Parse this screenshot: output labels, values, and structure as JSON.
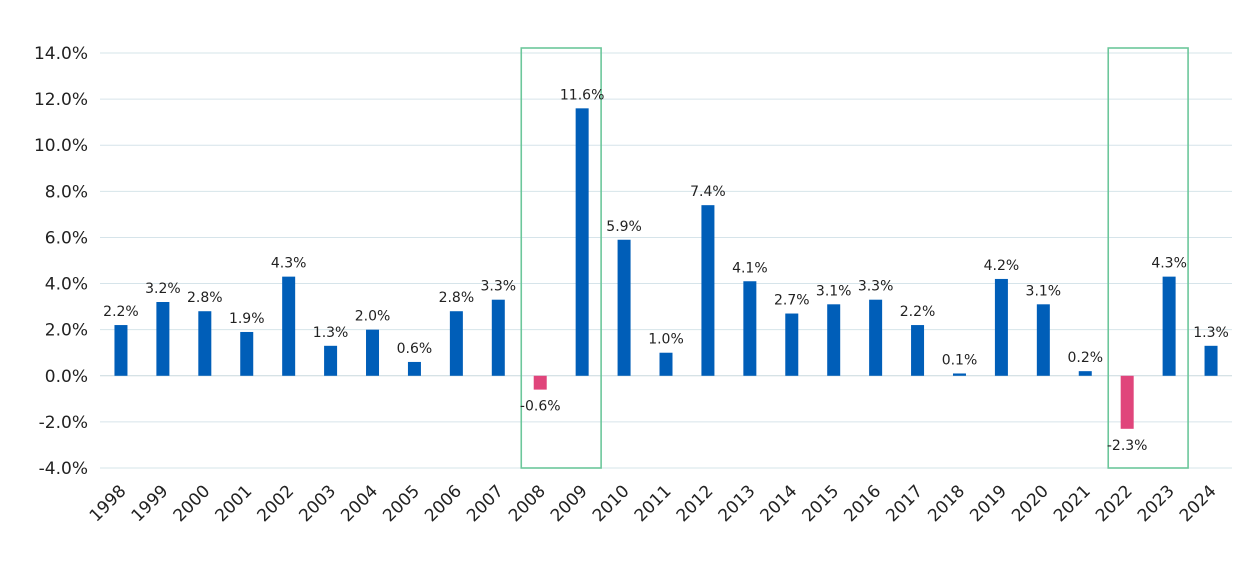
{
  "chart_data": {
    "type": "bar",
    "title": "",
    "xlabel": "",
    "ylabel": "",
    "ylim": [
      -4.0,
      14.0
    ],
    "y_ticks": [
      -4.0,
      -2.0,
      0.0,
      2.0,
      4.0,
      6.0,
      8.0,
      10.0,
      12.0,
      14.0
    ],
    "y_tick_labels": [
      "-4.0%",
      "-2.0%",
      "0.0%",
      "2.0%",
      "4.0%",
      "6.0%",
      "8.0%",
      "10.0%",
      "12.0%",
      "14.0%"
    ],
    "grid": true,
    "legend": "none",
    "categories": [
      "1998",
      "1999",
      "2000",
      "2001",
      "2002",
      "2003",
      "2004",
      "2005",
      "2006",
      "2007",
      "2008",
      "2009",
      "2010",
      "2011",
      "2012",
      "2013",
      "2014",
      "2015",
      "2016",
      "2017",
      "2018",
      "2019",
      "2020",
      "2021",
      "2022",
      "2023",
      "2024"
    ],
    "values": [
      2.2,
      3.2,
      2.8,
      1.9,
      4.3,
      1.3,
      2.0,
      0.6,
      2.8,
      3.3,
      -0.6,
      11.6,
      5.9,
      1.0,
      7.4,
      4.1,
      2.7,
      3.1,
      3.3,
      2.2,
      0.1,
      4.2,
      3.1,
      0.2,
      -2.3,
      4.3,
      1.3
    ],
    "data_labels": [
      "2.2%",
      "3.2%",
      "2.8%",
      "1.9%",
      "4.3%",
      "1.3%",
      "2.0%",
      "0.6%",
      "2.8%",
      "3.3%",
      "-0.6%",
      "11.6%",
      "5.9%",
      "1.0%",
      "7.4%",
      "4.1%",
      "2.7%",
      "3.1%",
      "3.3%",
      "2.2%",
      "0.1%",
      "4.2%",
      "3.1%",
      "0.2%",
      "-2.3%",
      "4.3%",
      "1.3%"
    ],
    "highlight_ranges": [
      [
        "2008",
        "2009"
      ],
      [
        "2022",
        "2023"
      ]
    ],
    "colors": {
      "positive": "#005eb8",
      "negative": "#e0457b",
      "highlight_box": "#6cc79b",
      "grid": "#d6e4ea"
    }
  }
}
